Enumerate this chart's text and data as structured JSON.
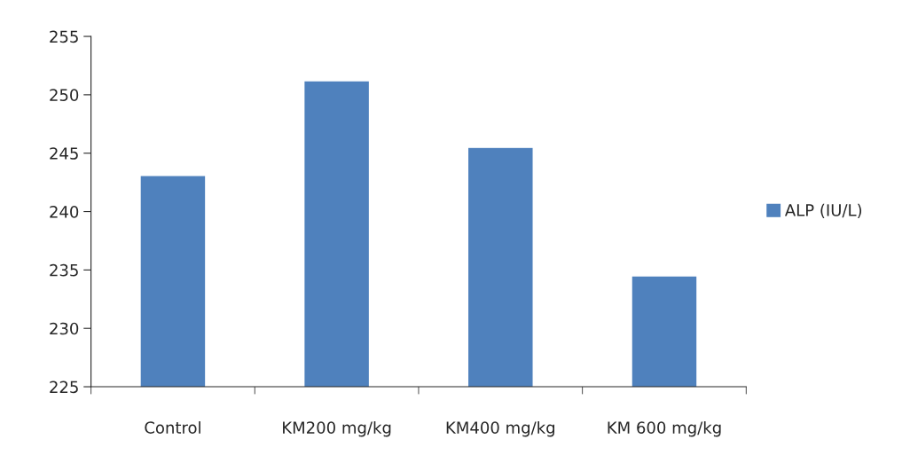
{
  "chart_data": {
    "type": "bar",
    "categories": [
      "Control",
      "KM200 mg/kg",
      "KM400 mg/kg",
      "KM 600 mg/kg"
    ],
    "series": [
      {
        "name": "ALP (IU/L)",
        "color": "#4f81bd",
        "values": [
          243.1,
          251.2,
          245.5,
          234.5
        ]
      }
    ],
    "ylim": [
      225,
      255
    ],
    "yticks": [
      225,
      230,
      235,
      240,
      245,
      250,
      255
    ],
    "grid": false,
    "legend": "right"
  }
}
